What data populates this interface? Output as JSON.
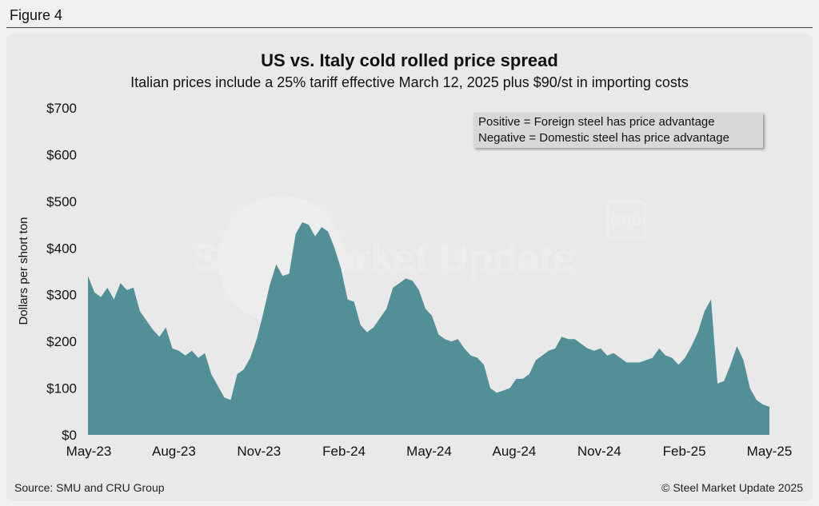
{
  "figure_label": "Figure 4",
  "source": "Source: SMU and CRU Group",
  "copyright": "© Steel Market Update 2025",
  "watermark": "Steel Market Update",
  "logo_text": "CRU",
  "colors": {
    "area_fill": "#528f96",
    "panel_bg": "#e9e9e9",
    "legend_bg": "#d8d8d8"
  },
  "chart_data": {
    "type": "area",
    "title": "US vs. Italy cold rolled price spread",
    "subtitle": "Italian prices include a 25% tariff effective March 12, 2025 plus $90/st in importing costs",
    "xlabel": "",
    "ylabel": "Dollars per short ton",
    "ylim": [
      0,
      700
    ],
    "yticks": [
      "$0",
      "$100",
      "$200",
      "$300",
      "$400",
      "$500",
      "$600",
      "$700"
    ],
    "xticks": [
      "May-23",
      "Aug-23",
      "Nov-23",
      "Feb-24",
      "May-24",
      "Aug-24",
      "Nov-24",
      "Feb-25",
      "May-25"
    ],
    "grid": false,
    "annotation": [
      "Positive = Foreign steel has price advantage",
      "Negative = Domestic steel has price advantage"
    ],
    "series": [
      {
        "values": [
          340,
          305,
          295,
          315,
          290,
          325,
          310,
          315,
          265,
          245,
          225,
          210,
          230,
          185,
          180,
          170,
          180,
          165,
          175,
          130,
          105,
          80,
          75,
          130,
          140,
          165,
          205,
          260,
          320,
          365,
          340,
          345,
          430,
          455,
          450,
          425,
          445,
          435,
          400,
          355,
          290,
          285,
          235,
          220,
          230,
          250,
          270,
          315,
          325,
          335,
          330,
          310,
          270,
          255,
          215,
          205,
          200,
          205,
          185,
          170,
          165,
          150,
          100,
          90,
          95,
          100,
          120,
          120,
          130,
          160,
          170,
          180,
          185,
          210,
          205,
          205,
          195,
          185,
          180,
          185,
          170,
          175,
          165,
          155,
          155,
          155,
          160,
          165,
          185,
          170,
          165,
          150,
          165,
          190,
          220,
          265,
          290,
          110,
          115,
          150,
          190,
          160,
          100,
          75,
          65,
          60
        ]
      }
    ]
  }
}
